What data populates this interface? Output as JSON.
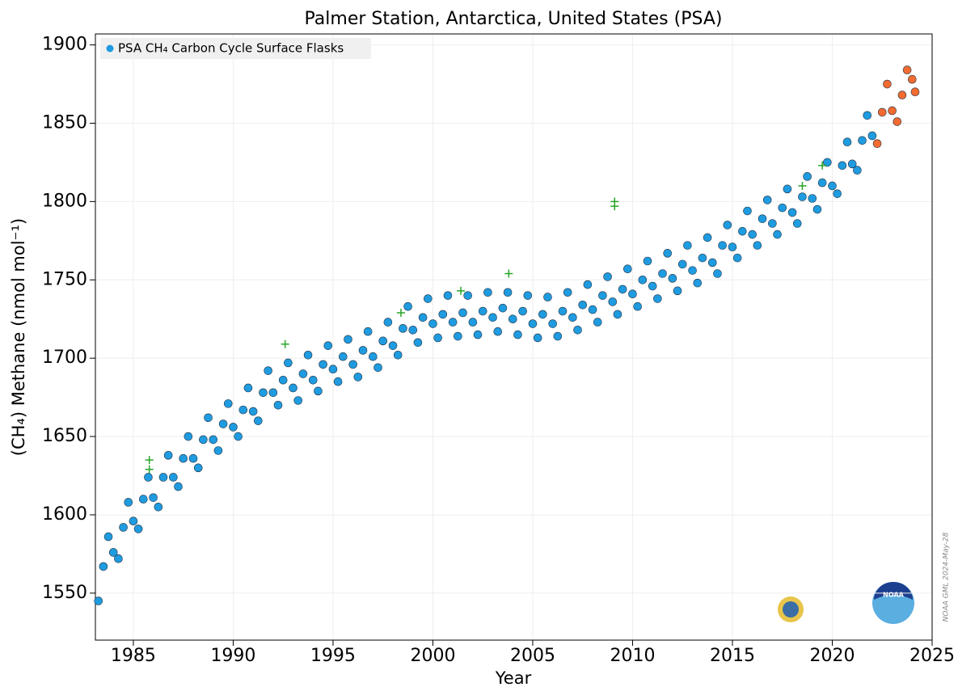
{
  "chart_data": {
    "type": "scatter",
    "title": "Palmer Station, Antarctica, United States (PSA)",
    "xlabel": "Year",
    "ylabel": "(CH₄) Methane (nmol mol⁻¹)",
    "watermark": "NOAA GML 2024-May-28",
    "logo_text": "NOAA",
    "xlim": [
      1983.1,
      2025
    ],
    "xticks": [
      1985,
      1990,
      1995,
      2000,
      2005,
      2010,
      2015,
      2020,
      2025
    ],
    "ylim": [
      1520,
      1907
    ],
    "yticks": [
      1550,
      1600,
      1650,
      1700,
      1750,
      1800,
      1850,
      1900
    ],
    "grid": true,
    "legend": "upper left",
    "series": [
      {
        "name": "PSA CH₄ Carbon Cycle Surface Flasks",
        "color": "#1f9be0",
        "marker": "circle",
        "x": [
          1983.25,
          1983.5,
          1983.75,
          1984,
          1984.25,
          1984.5,
          1984.75,
          1985,
          1985.25,
          1985.5,
          1985.75,
          1986,
          1986.25,
          1986.5,
          1986.75,
          1987,
          1987.25,
          1987.5,
          1987.75,
          1988,
          1988.25,
          1988.5,
          1988.75,
          1989,
          1989.25,
          1989.5,
          1989.75,
          1990,
          1990.25,
          1990.5,
          1990.75,
          1991,
          1991.25,
          1991.5,
          1991.75,
          1992,
          1992.25,
          1992.5,
          1992.75,
          1993,
          1993.25,
          1993.5,
          1993.75,
          1994,
          1994.25,
          1994.5,
          1994.75,
          1995,
          1995.25,
          1995.5,
          1995.75,
          1996,
          1996.25,
          1996.5,
          1996.75,
          1997,
          1997.25,
          1997.5,
          1997.75,
          1998,
          1998.25,
          1998.5,
          1998.75,
          1999,
          1999.25,
          1999.5,
          1999.75,
          2000,
          2000.25,
          2000.5,
          2000.75,
          2001,
          2001.25,
          2001.5,
          2001.75,
          2002,
          2002.25,
          2002.5,
          2002.75,
          2003,
          2003.25,
          2003.5,
          2003.75,
          2004,
          2004.25,
          2004.5,
          2004.75,
          2005,
          2005.25,
          2005.5,
          2005.75,
          2006,
          2006.25,
          2006.5,
          2006.75,
          2007,
          2007.25,
          2007.5,
          2007.75,
          2008,
          2008.25,
          2008.5,
          2008.75,
          2009,
          2009.25,
          2009.5,
          2009.75,
          2010,
          2010.25,
          2010.5,
          2010.75,
          2011,
          2011.25,
          2011.5,
          2011.75,
          2012,
          2012.25,
          2012.5,
          2012.75,
          2013,
          2013.25,
          2013.5,
          2013.75,
          2014,
          2014.25,
          2014.5,
          2014.75,
          2015,
          2015.25,
          2015.5,
          2015.75,
          2016,
          2016.25,
          2016.5,
          2016.75,
          2017,
          2017.25,
          2017.5,
          2017.75,
          2018,
          2018.25,
          2018.5,
          2018.75,
          2019,
          2019.25,
          2019.5,
          2019.75,
          2020,
          2020.25,
          2020.5,
          2020.75,
          2021,
          2021.25,
          2021.5,
          2021.75,
          2022
        ],
        "values": [
          1545,
          1567,
          1586,
          1576,
          1572,
          1592,
          1608,
          1596,
          1591,
          1610,
          1624,
          1611,
          1605,
          1624,
          1638,
          1624,
          1618,
          1636,
          1650,
          1636,
          1630,
          1648,
          1662,
          1648,
          1641,
          1658,
          1671,
          1656,
          1650,
          1667,
          1681,
          1666,
          1660,
          1678,
          1692,
          1678,
          1670,
          1686,
          1697,
          1681,
          1673,
          1690,
          1702,
          1686,
          1679,
          1696,
          1708,
          1693,
          1685,
          1701,
          1712,
          1696,
          1688,
          1705,
          1717,
          1701,
          1694,
          1711,
          1723,
          1708,
          1702,
          1719,
          1733,
          1718,
          1710,
          1726,
          1738,
          1722,
          1713,
          1728,
          1740,
          1723,
          1714,
          1729,
          1740,
          1723,
          1715,
          1730,
          1742,
          1726,
          1717,
          1732,
          1742,
          1725,
          1715,
          1730,
          1740,
          1722,
          1713,
          1728,
          1739,
          1722,
          1714,
          1730,
          1742,
          1726,
          1718,
          1734,
          1747,
          1731,
          1723,
          1740,
          1752,
          1736,
          1728,
          1744,
          1757,
          1741,
          1733,
          1750,
          1762,
          1746,
          1738,
          1754,
          1767,
          1751,
          1743,
          1760,
          1772,
          1756,
          1748,
          1764,
          1777,
          1761,
          1754,
          1772,
          1785,
          1771,
          1764,
          1781,
          1794,
          1779,
          1772,
          1789,
          1801,
          1786,
          1779,
          1796,
          1808,
          1793,
          1786,
          1803,
          1816,
          1802,
          1795,
          1812,
          1825,
          1810,
          1805,
          1823,
          1838,
          1824,
          1820,
          1839,
          1855,
          1842
        ]
      },
      {
        "color": "#f26b30",
        "marker": "circle",
        "x": [
          2022.25,
          2022.5,
          2022.75,
          2023,
          2023.25,
          2023.5,
          2023.75,
          2024,
          2024.15
        ],
        "values": [
          1837,
          1857,
          1875,
          1858,
          1851,
          1868,
          1884,
          1878,
          1870
        ]
      },
      {
        "color": "#2aa52a",
        "marker": "plus",
        "x": [
          1985.8,
          1985.8,
          1992.6,
          1998.4,
          2001.4,
          2003.8,
          2009.1,
          2009.1,
          2018.5,
          2019.5
        ],
        "values": [
          1635,
          1629,
          1709,
          1729,
          1743,
          1754,
          1800,
          1797,
          1810,
          1823
        ]
      }
    ]
  }
}
